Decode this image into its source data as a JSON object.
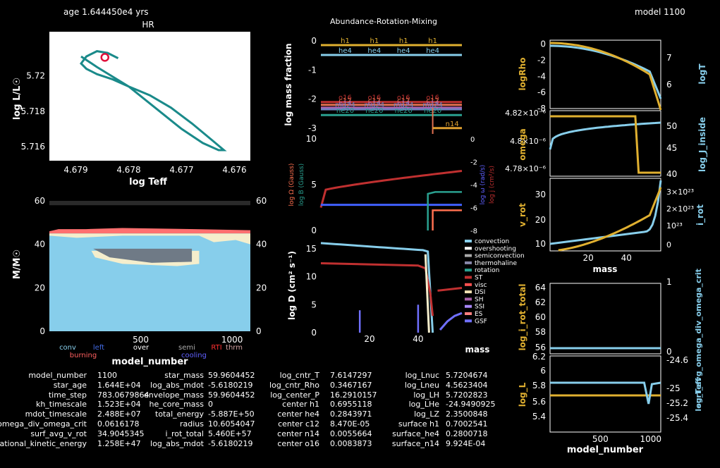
{
  "header": {
    "age": "age 1.644450e4 yrs",
    "center_title": "Abundance-Rotation-Mixing",
    "model": "model 1100"
  },
  "chart_data": [
    {
      "id": "hr",
      "type": "line",
      "title": "HR",
      "xlabel": "log Teff",
      "ylabel": "log L/L☉",
      "xlim": [
        4.6795,
        4.6757
      ],
      "ylim": [
        5.7152,
        5.7225
      ],
      "xticks": [
        "4.679",
        "4.678",
        "4.677",
        "4.676"
      ],
      "yticks": [
        "5.716",
        "5.718",
        "5.72"
      ],
      "x": [
        4.6782,
        4.6784,
        4.6786,
        4.6788,
        4.6789,
        4.6788,
        4.6786,
        4.6783,
        4.678,
        4.6776,
        4.6772,
        4.6768,
        4.6764,
        4.6762,
        4.6763,
        4.6766,
        4.677,
        4.6775,
        4.678,
        4.6786,
        4.6789
      ],
      "y": [
        5.721,
        5.7213,
        5.7214,
        5.7211,
        5.7207,
        5.7204,
        5.7201,
        5.7198,
        5.7194,
        5.7189,
        5.7182,
        5.7173,
        5.7163,
        5.7158,
        5.7158,
        5.7162,
        5.717,
        5.7182,
        5.7194,
        5.7205,
        5.7211
      ],
      "current": [
        4.67845,
        5.72105
      ]
    },
    {
      "id": "kipp",
      "type": "area",
      "xlabel": "model_number",
      "ylabel": "M/M☉",
      "xlim": [
        0,
        1100
      ],
      "ylim": [
        0,
        60
      ],
      "xticks": [
        "500",
        "1000"
      ],
      "yticks": [
        "0",
        "20",
        "40",
        "60"
      ],
      "right_yticks": [
        "0",
        "20",
        "40",
        "60"
      ],
      "legend": [
        "conv",
        "left",
        "over",
        "semi",
        "RTI",
        "thrm",
        "burning",
        "cooling"
      ],
      "legend_colors": [
        "#87ceeb",
        "#4169e1",
        "#ffffff",
        "#aaaaaa",
        "#ff3030",
        "#d0a0a0",
        "#ff6060",
        "#6060ff"
      ]
    },
    {
      "id": "abund",
      "type": "line",
      "ylabel": "log mass fraction",
      "ylim": [
        -3.2,
        0.2
      ],
      "yticks": [
        "0",
        "-1",
        "-2",
        "-3"
      ],
      "series": [
        {
          "name": "h1",
          "y": -0.14,
          "color": "#e0b030"
        },
        {
          "name": "he4",
          "y": -0.48,
          "color": "#87ceeb"
        },
        {
          "name": "o16",
          "y": -2.1,
          "color": "#c03030"
        },
        {
          "name": "c12",
          "y": -2.2,
          "color": "#e07050"
        },
        {
          "name": "n14",
          "y": -2.3,
          "color": "#b060b0"
        },
        {
          "name": "mg24",
          "y": -2.35,
          "color": "#7080c0"
        },
        {
          "name": "ne20",
          "y": -2.55,
          "color": "#2aa090"
        }
      ]
    },
    {
      "id": "rot",
      "type": "line",
      "left_ylabels": [
        "log Ω (Gauss)",
        "log B (Gauss)"
      ],
      "right_ylabels": [
        "log ω (rad/s)",
        "log j (cm²/s)"
      ],
      "ylim": [
        0,
        10
      ],
      "yticks": [
        "0",
        "5",
        "10"
      ],
      "right_yticks": [
        "0",
        "-2",
        "-4",
        "-6",
        "-8"
      ]
    },
    {
      "id": "mix",
      "type": "line",
      "ylabel": "log D (cm² s⁻¹)",
      "xlabel": "mass",
      "xlim": [
        0,
        60
      ],
      "ylim": [
        0,
        17
      ],
      "xticks": [
        "20",
        "40"
      ],
      "yticks": [
        "0",
        "5",
        "10",
        "15"
      ],
      "legend": [
        "convection",
        "overshooting",
        "semiconvection",
        "thermohaline",
        "rotation",
        "ST",
        "visc",
        "DSI",
        "SH",
        "SSI",
        "ES",
        "GSF"
      ],
      "legend_colors": [
        "#87ceeb",
        "#ffffff",
        "#aaaaaa",
        "#8888aa",
        "#2aa090",
        "#c03030",
        "#ff5050",
        "#f0e0b0",
        "#aa60aa",
        "#aa88ff",
        "#ff8080",
        "#7070ff"
      ]
    },
    {
      "id": "rho",
      "type": "line",
      "ylabels": [
        "logRho",
        "logT"
      ],
      "yticks": [
        "0",
        "-2",
        "-4",
        "-6",
        "-8"
      ],
      "right_yticks": [
        "7",
        "6"
      ]
    },
    {
      "id": "omega",
      "type": "line",
      "ylabels": [
        "omega",
        "log_J_inside"
      ],
      "yticks": [
        "4.82×10⁻⁶",
        "4.8×10⁻⁶",
        "4.78×10⁻⁶"
      ],
      "right_yticks": [
        "50",
        "45",
        "40"
      ]
    },
    {
      "id": "vrot",
      "type": "line",
      "ylabels": [
        "v_rot",
        "i_rot"
      ],
      "xlabel": "mass",
      "xticks": [
        "20",
        "40"
      ],
      "yticks": [
        "10",
        "20",
        "30"
      ],
      "right_yticks": [
        "3×10²³",
        "2×10²³",
        "10²³",
        "0"
      ]
    },
    {
      "id": "irot",
      "type": "line",
      "ylabels": [
        "log_i_rot_total",
        "surf_avg_omega_div_omega_crit"
      ],
      "yticks": [
        "56",
        "58",
        "60",
        "62",
        "64"
      ],
      "right_yticks": [
        "0",
        "1"
      ]
    },
    {
      "id": "logL",
      "type": "line",
      "ylabels": [
        "log_L",
        "log_Teff"
      ],
      "xlabel": "model_number",
      "xticks": [
        "500",
        "1000"
      ],
      "yticks": [
        "6.2",
        "6",
        "5.8",
        "5.6",
        "5.4"
      ],
      "right_yticks": [
        "-24.6",
        "-25",
        "-25.2",
        "-25.4"
      ]
    }
  ],
  "table": [
    [
      "model_number",
      "1100",
      "star_mass",
      "59.9604452",
      "log_cntr_T",
      "7.6147297",
      "log_Lnuc",
      "5.7204674"
    ],
    [
      "star_age",
      "1.644E+04",
      "log_abs_mdot",
      "-5.6180219",
      "log_cntr_Rho",
      "0.3467167",
      "log_Lneu",
      "4.5623404"
    ],
    [
      "time_step",
      "783.0679864",
      "envelope_mass",
      "59.9604452",
      "log_center_P",
      "16.2910157",
      "log_LH",
      "5.7202823"
    ],
    [
      "kh_timescale",
      "1.523E+04",
      "he_core_mass",
      "0",
      "center h1",
      "0.6955118",
      "log_LHe",
      "-24.9490925"
    ],
    [
      "mdot_timescale",
      "2.488E+07",
      "total_energy",
      "-5.887E+50",
      "center he4",
      "0.2843971",
      "log_LZ",
      "2.3500848"
    ],
    [
      "surf_avg_omega_div_omega_crit",
      "0.0616178",
      "radius",
      "10.6054047",
      "center c12",
      "8.470E-05",
      "surface h1",
      "0.7002541"
    ],
    [
      "surf_avg_v_rot",
      "34.9045345",
      "i_rot_total",
      "5.460E+57",
      "center n14",
      "0.0055664",
      "surface_he4",
      "0.2800718"
    ],
    [
      "rotational_kinetic_energy",
      "1.258E+47",
      "log_abs_mdot",
      "-5.6180219",
      "center o16",
      "0.0083873",
      "surface_n14",
      "9.924E-04"
    ]
  ]
}
